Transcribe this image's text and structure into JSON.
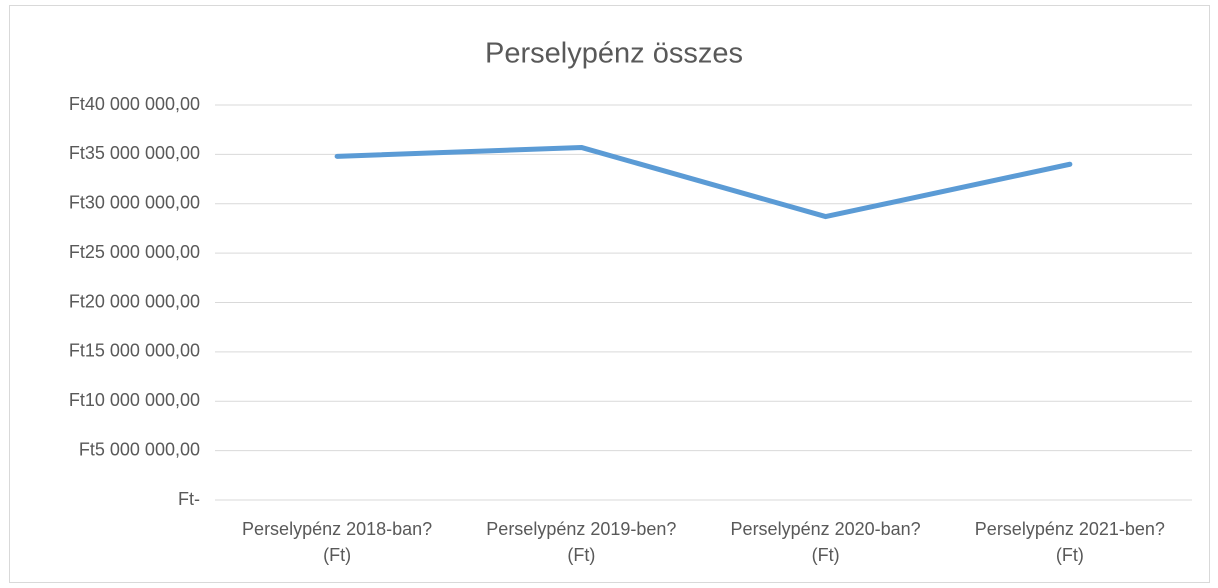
{
  "chart_data": {
    "type": "line",
    "title": "Perselypénz összes",
    "categories": [
      "Perselypénz 2018-ban? (Ft)",
      "Perselypénz 2019-ben? (Ft)",
      "Perselypénz 2020-ban? (Ft)",
      "Perselypénz 2021-ben? (Ft)"
    ],
    "series": [
      {
        "name": "Perselypénz összes",
        "color": "#5b9bd5",
        "values": [
          34800000,
          35700000,
          28700000,
          34000000
        ]
      }
    ],
    "ylim": [
      0,
      40000000
    ],
    "yticks": [
      {
        "value": 0,
        "label": "Ft-"
      },
      {
        "value": 5000000,
        "label": "Ft5 000 000,00"
      },
      {
        "value": 10000000,
        "label": "Ft10 000 000,00"
      },
      {
        "value": 15000000,
        "label": "Ft15 000 000,00"
      },
      {
        "value": 20000000,
        "label": "Ft20 000 000,00"
      },
      {
        "value": 25000000,
        "label": "Ft25 000 000,00"
      },
      {
        "value": 30000000,
        "label": "Ft30 000 000,00"
      },
      {
        "value": 35000000,
        "label": "Ft35 000 000,00"
      },
      {
        "value": 40000000,
        "label": "Ft40 000 000,00"
      }
    ],
    "grid": true
  }
}
